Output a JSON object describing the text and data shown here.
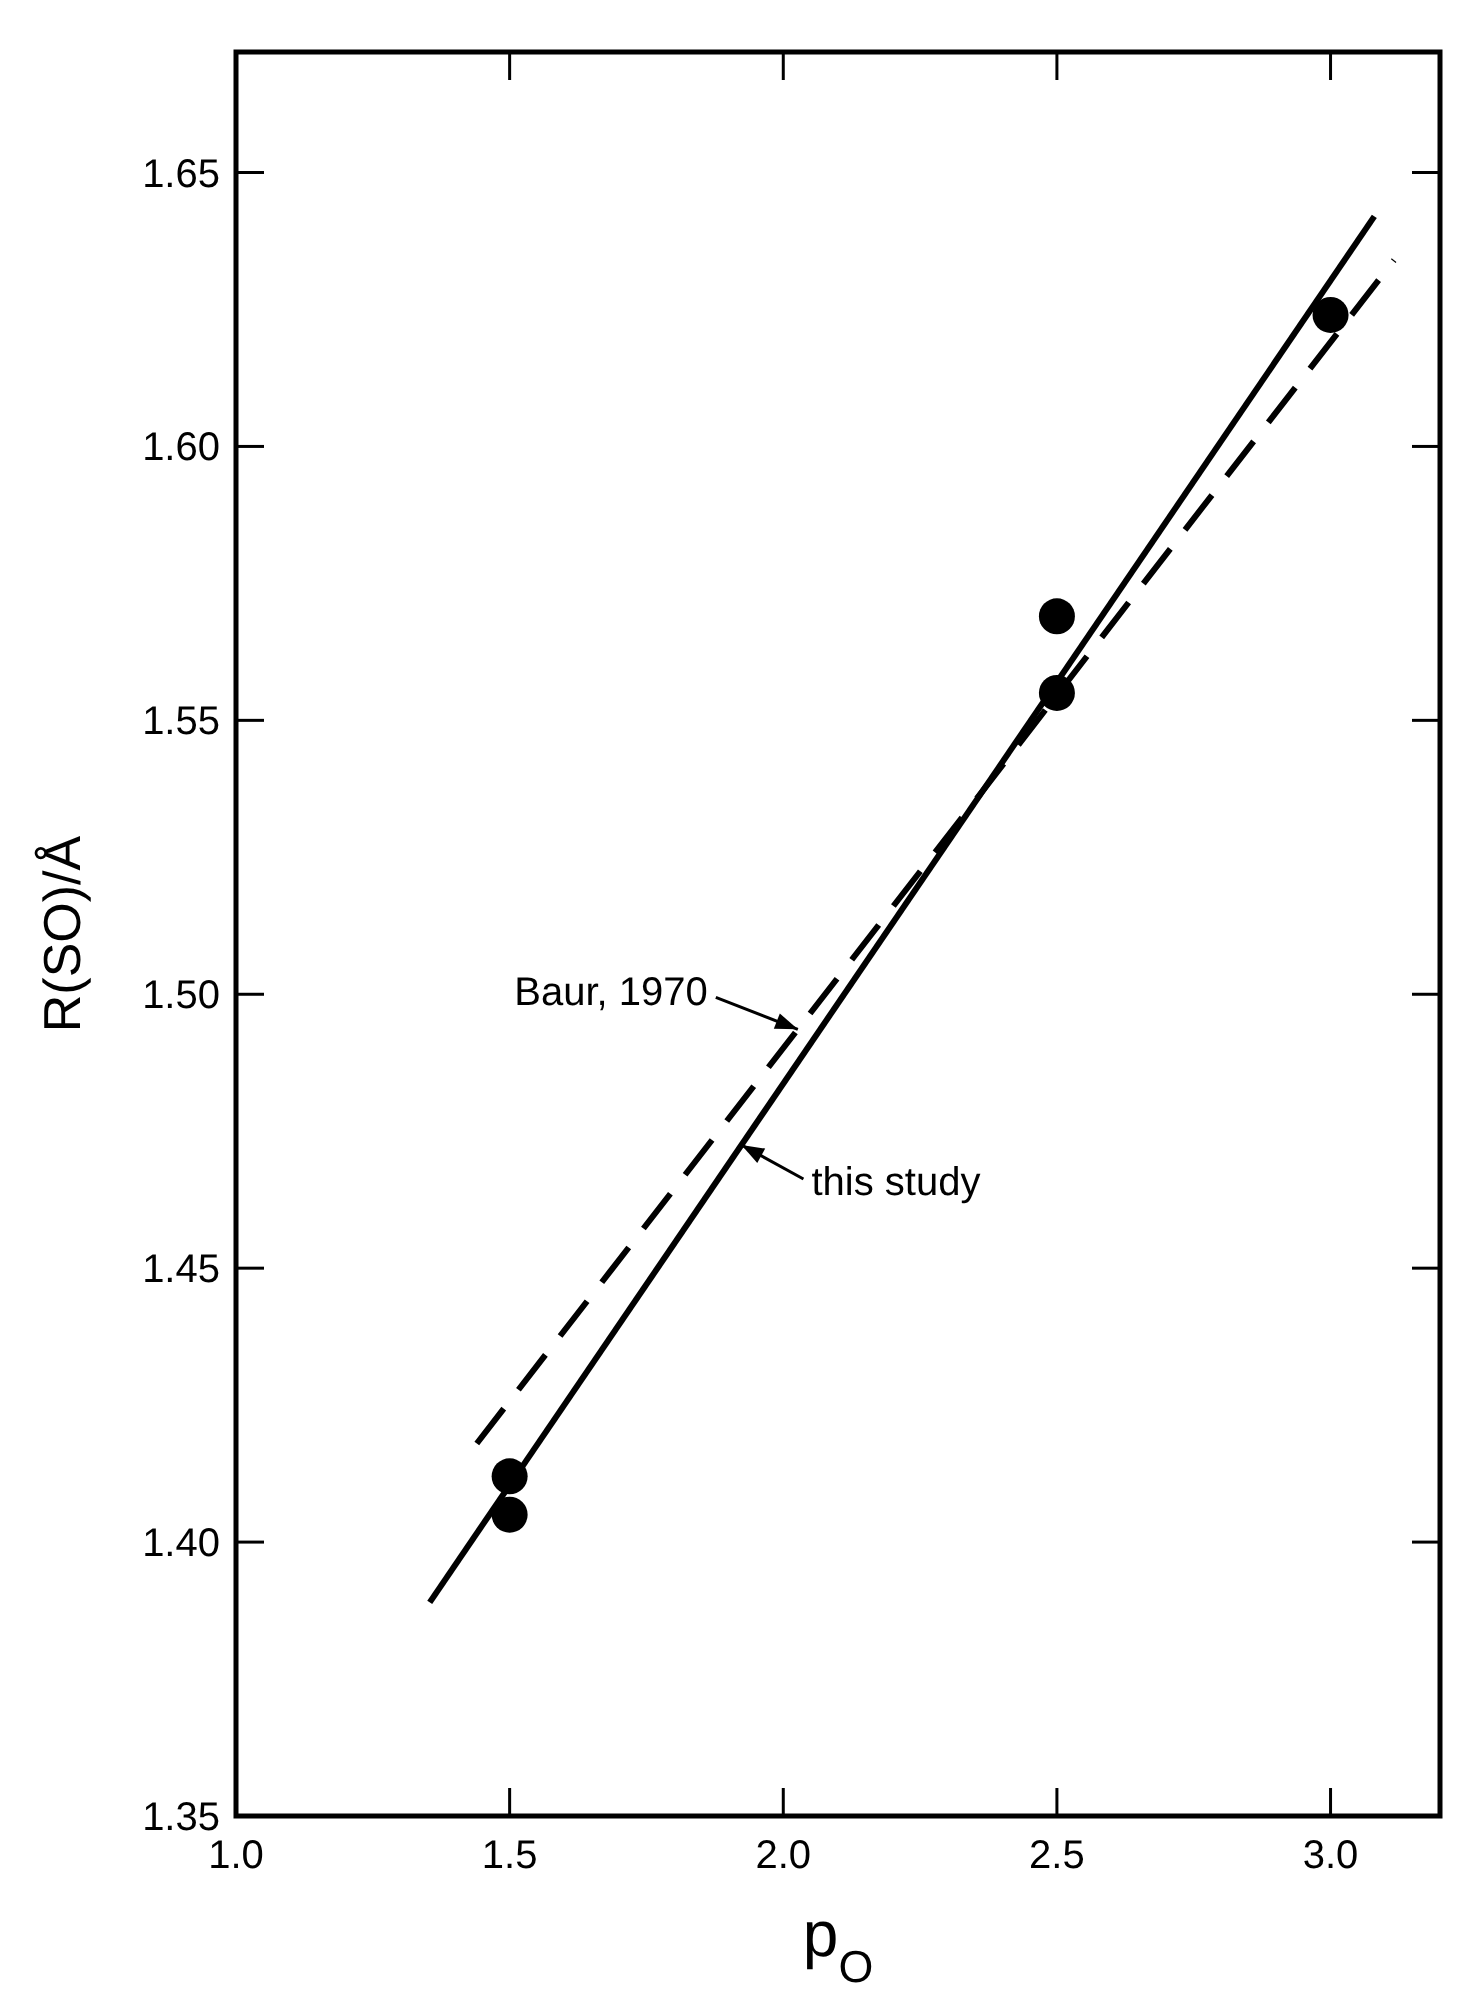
{
  "chart_data": {
    "type": "scatter",
    "xlabel": "p$_{O}$",
    "ylabel": "R(SO)/Å",
    "xlim": [
      1.0,
      3.2
    ],
    "ylim": [
      1.35,
      1.672
    ],
    "xticks": [
      {
        "value": 1.0,
        "label": "1.0"
      },
      1.5,
      {
        "value": 2.0,
        "label": "2.0"
      },
      2.5,
      {
        "value": 3.0,
        "label": "3.0"
      }
    ],
    "yticks": [
      1.35,
      {
        "value": 1.4,
        "label": "1.40"
      },
      1.45,
      {
        "value": 1.5,
        "label": "1.50"
      },
      1.55,
      {
        "value": 1.6,
        "label": "1.60"
      },
      1.65
    ],
    "grid": false,
    "series": [
      {
        "color": "#000000",
        "marker": "circle",
        "x": [
          1.5,
          1.5,
          2.5,
          2.5,
          3.0
        ],
        "values": [
          1.412,
          1.405,
          1.569,
          1.555,
          1.624
        ]
      },
      {
        "type": "line",
        "name": "Baur, 1970",
        "color": "#000000",
        "line_style": "dashed",
        "x": [
          1.44,
          3.116
        ],
        "values": [
          1.418,
          1.634
        ]
      },
      {
        "type": "line",
        "name": "this study",
        "color": "#000000",
        "line_style": "solid",
        "x": [
          1.354,
          3.08
        ],
        "values": [
          1.389,
          1.642
        ]
      }
    ]
  }
}
